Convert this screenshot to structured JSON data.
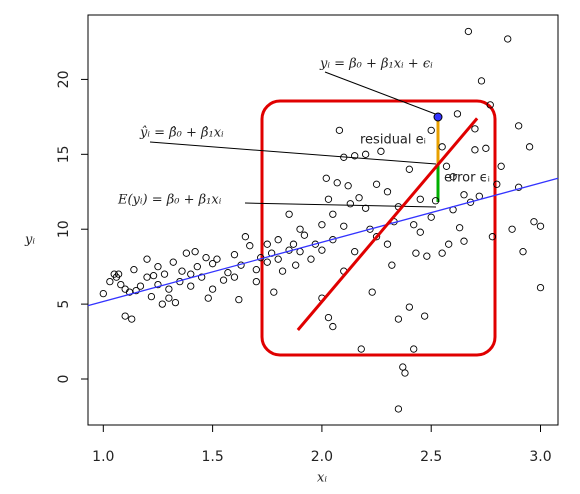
{
  "chart_data": {
    "type": "scatter",
    "xlabel": "xᵢ",
    "ylabel": "yᵢ",
    "annotations": [
      "yᵢ = β₀ + β₁xᵢ + ϵᵢ",
      "ŷᵢ = β̂₀ + β̂₁xᵢ",
      "E(yᵢ) = β₀ + β₁xᵢ",
      "residual eᵢ",
      "error ϵᵢ"
    ],
    "xlim": [
      0.93,
      3.08
    ],
    "ylim": [
      -3.07,
      24.3
    ],
    "xticks": [
      {
        "value": 1,
        "label": "1.0"
      },
      {
        "value": 1.5,
        "label": "1.5"
      },
      {
        "value": 2,
        "label": "2.0"
      },
      {
        "value": 2.5,
        "label": "2.5"
      },
      {
        "value": 3,
        "label": "3.0"
      }
    ],
    "yticks": [
      0,
      5,
      10,
      15,
      20
    ],
    "series": [
      {
        "color": "#000000",
        "x": [
          1.0,
          1.03,
          1.05,
          1.06,
          1.07,
          1.08,
          1.1,
          1.1,
          1.12,
          1.13,
          1.14,
          1.15,
          1.17,
          1.2,
          1.2,
          1.22,
          1.23,
          1.25,
          1.25,
          1.27,
          1.28,
          1.3,
          1.3,
          1.32,
          1.33,
          1.35,
          1.36,
          1.38,
          1.4,
          1.4,
          1.42,
          1.43,
          1.45,
          1.47,
          1.48,
          1.5,
          1.5,
          1.52,
          1.55,
          1.57,
          1.6,
          1.6,
          1.62,
          1.63,
          1.65,
          1.67,
          1.7,
          1.7,
          1.72,
          1.75,
          1.75,
          1.77,
          1.8,
          1.8,
          1.82,
          1.85,
          1.87,
          1.88,
          1.9,
          1.9,
          1.92,
          1.95,
          1.97,
          2.0,
          2.0,
          2.02,
          2.03,
          2.05,
          2.05,
          2.07,
          2.08,
          2.1,
          2.1,
          2.12,
          2.13,
          2.15,
          2.15,
          2.17,
          2.2,
          2.2,
          2.22,
          2.23,
          2.25,
          2.27,
          2.3,
          2.3,
          2.32,
          2.33,
          2.35,
          2.35,
          2.37,
          2.38,
          2.4,
          2.4,
          2.42,
          2.43,
          2.45,
          2.47,
          2.48,
          2.5,
          2.5,
          2.52,
          2.55,
          2.57,
          2.58,
          2.6,
          2.6,
          2.62,
          2.63,
          2.65,
          2.67,
          2.68,
          2.7,
          2.72,
          2.73,
          2.75,
          2.77,
          2.78,
          2.8,
          2.82,
          2.85,
          2.87,
          2.9,
          2.9,
          2.92,
          2.95,
          2.97,
          3.0,
          3.0,
          2.0,
          2.03,
          2.05,
          2.18,
          2.42,
          1.78,
          1.85,
          2.1,
          2.25,
          2.45,
          2.55,
          2.65,
          2.35,
          2.7
        ],
        "values": [
          5.7,
          6.5,
          7.0,
          6.8,
          7.0,
          6.3,
          6.0,
          4.2,
          5.8,
          4.0,
          7.3,
          5.9,
          6.2,
          6.8,
          8.0,
          5.5,
          6.9,
          7.5,
          6.3,
          5.0,
          7.0,
          6.0,
          5.4,
          7.8,
          5.1,
          6.5,
          7.2,
          8.4,
          7.0,
          6.2,
          8.5,
          7.5,
          6.8,
          8.1,
          5.4,
          7.7,
          6.0,
          8.0,
          6.6,
          7.1,
          8.3,
          6.8,
          5.3,
          7.6,
          9.5,
          8.9,
          7.3,
          6.5,
          8.1,
          9.0,
          7.8,
          8.4,
          8.0,
          9.3,
          7.2,
          8.6,
          9.0,
          7.6,
          10.0,
          8.5,
          9.6,
          8.0,
          9.0,
          10.3,
          8.6,
          13.4,
          12.0,
          11.0,
          9.3,
          13.1,
          16.6,
          14.8,
          10.2,
          12.9,
          11.7,
          8.5,
          14.9,
          12.1,
          15.0,
          11.4,
          10.0,
          5.8,
          13.0,
          15.2,
          12.5,
          9.0,
          7.6,
          10.5,
          4.0,
          -2.0,
          0.8,
          0.4,
          4.8,
          14.0,
          10.3,
          8.4,
          12.0,
          4.2,
          8.2,
          10.8,
          16.6,
          11.9,
          15.5,
          14.2,
          9.0,
          13.5,
          11.3,
          17.7,
          10.1,
          9.2,
          23.2,
          11.8,
          16.7,
          12.2,
          19.9,
          15.4,
          18.3,
          9.5,
          13.0,
          14.2,
          22.7,
          10.0,
          16.9,
          12.8,
          8.5,
          15.5,
          10.5,
          10.2,
          6.1,
          5.4,
          4.1,
          3.5,
          2.0,
          2.0,
          5.8,
          11.0,
          7.2,
          9.5,
          9.8,
          8.4,
          12.3,
          11.5,
          15.3
        ]
      }
    ],
    "lines": [
      {
        "color": "#3333ff",
        "x": [
          0.93,
          3.08
        ],
        "y": [
          4.9,
          13.4
        ]
      },
      {
        "color": "#e00000",
        "x": [
          1.89,
          2.71
        ],
        "y": [
          3.27,
          17.4
        ]
      }
    ]
  }
}
